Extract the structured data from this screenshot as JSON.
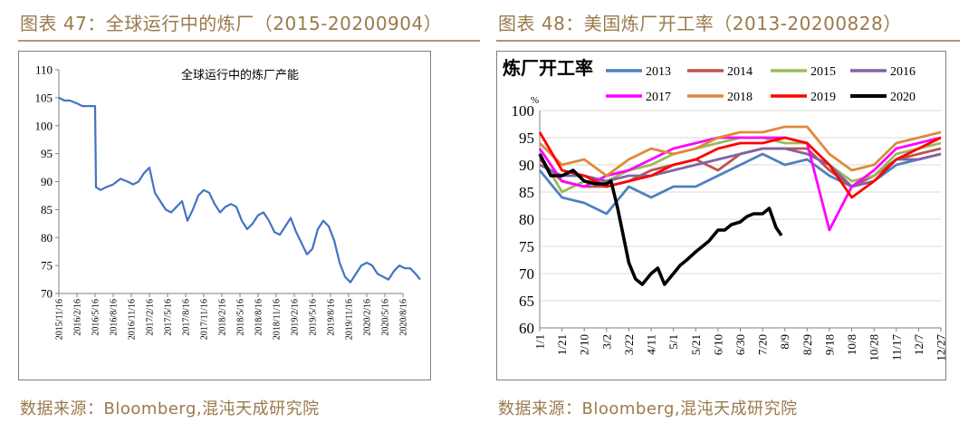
{
  "figures": [
    {
      "caption": "图表 47：全球运行中的炼厂（2015-20200904）",
      "source": "数据来源：Bloomberg,混沌天成研究院"
    },
    {
      "caption": "图表 48：美国炼厂开工率（2013-20200828）",
      "source": "数据来源：Bloomberg,混沌天成研究院"
    }
  ],
  "colors": {
    "caption": "#9a7a4c",
    "rule": "#b5956a",
    "series_left": "#4472c4"
  },
  "chart_data": [
    {
      "type": "line",
      "title": "全球运行中的炼厂产能",
      "ylim": [
        70,
        110
      ],
      "yticks": [
        "70",
        "75",
        "80",
        "85",
        "90",
        "95",
        "100",
        "105",
        "110"
      ],
      "xtick_labels": [
        "2015/11/16",
        "2016/2/16",
        "2016/5/16",
        "2016/8/16",
        "2016/11/16",
        "2017/2/16",
        "2017/5/16",
        "2017/8/16",
        "2017/11/16",
        "2018/2/16",
        "2018/5/16",
        "2018/8/16",
        "2018/11/16",
        "2019/2/16",
        "2019/5/16",
        "2019/8/16",
        "2019/11/16",
        "2020/2/16",
        "2020/5/16",
        "2020/8/16"
      ],
      "grid": false,
      "series": [
        {
          "color": "#4472c4",
          "x": [
            0,
            0.3,
            0.6,
            1.0,
            1.3,
            1.6,
            1.9,
            2.0,
            2.05,
            2.3,
            2.6,
            3.0,
            3.4,
            3.8,
            4.1,
            4.4,
            4.7,
            5.0,
            5.3,
            5.6,
            5.9,
            6.2,
            6.5,
            6.8,
            7.1,
            7.4,
            7.7,
            8.0,
            8.3,
            8.6,
            8.9,
            9.2,
            9.5,
            9.8,
            10.1,
            10.4,
            10.7,
            11.0,
            11.3,
            11.6,
            11.9,
            12.2,
            12.5,
            12.8,
            13.1,
            13.4,
            13.7,
            14.0,
            14.3,
            14.6,
            14.9,
            15.2,
            15.5,
            15.8,
            16.1,
            16.4,
            16.7,
            17.0,
            17.3,
            17.6,
            17.9,
            18.2,
            18.5,
            18.8,
            19.1,
            19.4,
            19.7,
            19.95
          ],
          "values": [
            105,
            104.5,
            104.5,
            104,
            103.5,
            103.5,
            103.5,
            103.5,
            89,
            88.5,
            89,
            89.5,
            90.5,
            90,
            89.5,
            90,
            91.5,
            92.5,
            88,
            86.5,
            85,
            84.5,
            85.5,
            86.5,
            83,
            85,
            87.5,
            88.5,
            88,
            86,
            84.5,
            85.5,
            86,
            85.5,
            83,
            81.5,
            82.5,
            84,
            84.5,
            83,
            81,
            80.5,
            82,
            83.5,
            81,
            79,
            77,
            78,
            81.5,
            83,
            82,
            79.5,
            75.5,
            73,
            72,
            73.5,
            75,
            75.5,
            75,
            73.5,
            73,
            72.5,
            74,
            75,
            74.5,
            74.5,
            73.5,
            72.5
          ]
        }
      ]
    },
    {
      "type": "line",
      "title": "炼厂开工率",
      "ylabel": "%",
      "ylim": [
        60,
        100
      ],
      "yticks": [
        "60",
        "65",
        "70",
        "75",
        "80",
        "85",
        "90",
        "95",
        "100"
      ],
      "xtick_labels": [
        "1/1",
        "1/21",
        "2/10",
        "3/2",
        "3/22",
        "4/11",
        "5/1",
        "5/21",
        "6/10",
        "6/30",
        "7/20",
        "8/9",
        "8/29",
        "9/18",
        "10/8",
        "10/28",
        "11/17",
        "12/7",
        "12/27"
      ],
      "grid": true,
      "legend": "top",
      "series": [
        {
          "name": "2013",
          "color": "#4f81bd",
          "x": [
            0,
            1,
            2,
            3,
            4,
            5,
            6,
            7,
            8,
            9,
            10,
            11,
            12,
            13,
            14,
            15,
            16,
            17,
            18
          ],
          "values": [
            89,
            84,
            83,
            81,
            86,
            84,
            86,
            86,
            88,
            90,
            92,
            90,
            91,
            88,
            86,
            87,
            90,
            91,
            92
          ]
        },
        {
          "name": "2014",
          "color": "#c0504d",
          "x": [
            0,
            1,
            2,
            3,
            4,
            5,
            6,
            7,
            8,
            9,
            10,
            11,
            12,
            13,
            14,
            15,
            16,
            17,
            18
          ],
          "values": [
            91,
            87,
            86,
            86,
            87,
            89,
            90,
            91,
            89,
            92,
            93,
            93,
            93,
            89,
            86,
            88,
            91,
            92,
            93
          ]
        },
        {
          "name": "2015",
          "color": "#9bbb59",
          "x": [
            0,
            1,
            2,
            3,
            4,
            5,
            6,
            7,
            8,
            9,
            10,
            11,
            12,
            13,
            14,
            15,
            16,
            17,
            18
          ],
          "values": [
            92,
            85,
            87,
            87,
            89,
            90,
            92,
            93,
            94,
            95,
            95,
            94,
            94,
            90,
            87,
            88,
            92,
            93,
            94
          ]
        },
        {
          "name": "2016",
          "color": "#8064a2",
          "x": [
            0,
            1,
            2,
            3,
            4,
            5,
            6,
            7,
            8,
            9,
            10,
            11,
            12,
            13,
            14,
            15,
            16,
            17,
            18
          ],
          "values": [
            90,
            88,
            88,
            87,
            88,
            88,
            89,
            90,
            91,
            92,
            93,
            93,
            92,
            90,
            86,
            87,
            91,
            91,
            92
          ]
        },
        {
          "name": "2017",
          "color": "#ff00ff",
          "x": [
            0,
            1,
            2,
            3,
            4,
            5,
            6,
            7,
            8,
            9,
            10,
            11,
            12,
            13,
            14,
            15,
            16,
            17,
            18
          ],
          "values": [
            93,
            87,
            86,
            88,
            89,
            91,
            93,
            94,
            95,
            95,
            95,
            95,
            94,
            78,
            86,
            89,
            93,
            94,
            95
          ]
        },
        {
          "name": "2018",
          "color": "#e0893a",
          "x": [
            0,
            1,
            2,
            3,
            4,
            5,
            6,
            7,
            8,
            9,
            10,
            11,
            12,
            13,
            14,
            15,
            16,
            17,
            18
          ],
          "values": [
            94,
            90,
            91,
            88,
            91,
            93,
            92,
            93,
            95,
            96,
            96,
            97,
            97,
            92,
            89,
            90,
            94,
            95,
            96
          ]
        },
        {
          "name": "2019",
          "color": "#ff0000",
          "x": [
            0,
            1,
            2,
            3,
            4,
            5,
            6,
            7,
            8,
            9,
            10,
            11,
            12,
            13,
            14,
            15,
            16,
            17,
            18
          ],
          "values": [
            96,
            89,
            88,
            86,
            87,
            88,
            90,
            91,
            93,
            94,
            94,
            95,
            94,
            90,
            84,
            87,
            91,
            93,
            95
          ]
        },
        {
          "name": "2020",
          "color": "#000000",
          "x": [
            0,
            0.5,
            1,
            1.5,
            2,
            2.5,
            3,
            3.2,
            3.5,
            4,
            4.3,
            4.6,
            5,
            5.3,
            5.6,
            6,
            6.3,
            6.6,
            7,
            7.3,
            7.6,
            8,
            8.3,
            8.6,
            9,
            9.3,
            9.6,
            10,
            10.3,
            10.6,
            10.85
          ],
          "values": [
            92,
            88,
            88,
            89,
            87,
            86.5,
            86.5,
            87,
            82,
            72,
            69,
            68,
            70,
            71,
            68,
            70,
            71.5,
            72.5,
            74,
            75,
            76,
            78,
            78,
            79,
            79.5,
            80.5,
            81,
            81,
            82,
            78.5,
            77
          ]
        }
      ]
    }
  ]
}
